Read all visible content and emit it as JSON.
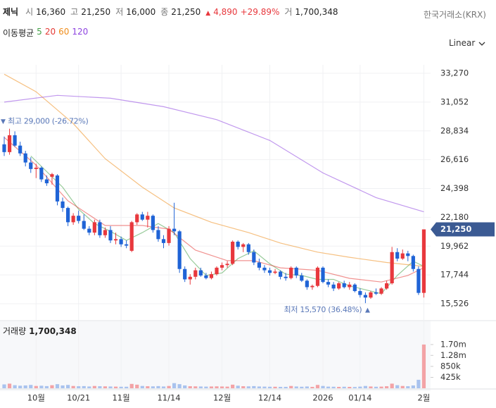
{
  "header": {
    "name": "제닉",
    "fields": [
      {
        "label": "시",
        "value": "16,360"
      },
      {
        "label": "고",
        "value": "21,250"
      },
      {
        "label": "저",
        "value": "16,000"
      },
      {
        "label": "종",
        "value": "21,250"
      }
    ],
    "change": "4,890",
    "change_pct": "+29.89%",
    "volume_label": "거",
    "volume": "1,700,348",
    "exchange": "한국거래소(KRX)",
    "scale": "Linear"
  },
  "chart_data": [
    {
      "type": "candlestick",
      "ma_title": "이동평균",
      "up_color": "#e8383d",
      "down_color": "#1f63d6",
      "grid": true,
      "open": [
        27800,
        27200,
        28500,
        27700,
        27100,
        26400,
        25900,
        26000,
        25100,
        25300,
        25400,
        23400,
        22900,
        21800,
        22300,
        21900,
        21300,
        21000,
        21800,
        20800,
        21200,
        20400,
        20500,
        20100,
        19600,
        21800,
        22400,
        22000,
        22300,
        21200,
        20500,
        20200,
        21300,
        21100,
        18200,
        17400,
        17600,
        18100,
        17700,
        17500,
        17800,
        18300,
        18500,
        18600,
        20300,
        19900,
        20100,
        19500,
        18700,
        18300,
        18100,
        17900,
        18000,
        17600,
        17500,
        18300,
        17700,
        17300,
        16800,
        16900,
        18300,
        17200,
        17000,
        16700,
        17100,
        16800,
        17000,
        16500,
        16200,
        16000,
        16400,
        16300,
        16700,
        17100,
        19500,
        19000,
        19400,
        19200,
        18200,
        16360
      ],
      "high": [
        28400,
        29000,
        28800,
        28000,
        27300,
        26800,
        26300,
        26100,
        25400,
        25600,
        25500,
        23700,
        23000,
        22500,
        22700,
        22400,
        21500,
        22000,
        22000,
        21400,
        21500,
        21000,
        20700,
        20400,
        21900,
        22500,
        22600,
        22600,
        22400,
        21500,
        20800,
        21500,
        23300,
        21200,
        18400,
        17800,
        18300,
        18300,
        17900,
        18000,
        18400,
        18700,
        18800,
        20400,
        20400,
        20200,
        20200,
        19700,
        19000,
        18500,
        18300,
        18200,
        18100,
        17900,
        18400,
        18400,
        17900,
        17400,
        17000,
        18400,
        18400,
        17400,
        17200,
        17200,
        17300,
        17200,
        17100,
        16700,
        16400,
        16500,
        16700,
        16800,
        17300,
        19900,
        19800,
        19700,
        19600,
        19300,
        18400,
        21250
      ],
      "low": [
        26900,
        27000,
        27600,
        26900,
        26100,
        25600,
        25200,
        24900,
        24600,
        24700,
        23100,
        22600,
        21500,
        21600,
        21700,
        21200,
        20800,
        20800,
        20600,
        20600,
        20200,
        20100,
        19900,
        19800,
        19500,
        21600,
        21900,
        21400,
        21000,
        20300,
        19800,
        20000,
        20800,
        17900,
        17200,
        17000,
        17400,
        17600,
        17400,
        17400,
        17700,
        18100,
        18300,
        18500,
        19700,
        19500,
        19300,
        18500,
        18100,
        17900,
        17700,
        17800,
        17400,
        17300,
        17400,
        17500,
        17200,
        16600,
        16600,
        16800,
        17100,
        16800,
        16500,
        16600,
        16700,
        16600,
        16400,
        16000,
        15570,
        15900,
        16200,
        16200,
        16600,
        17000,
        18800,
        18900,
        18800,
        18000,
        16200,
        16000
      ],
      "close": [
        27200,
        28500,
        27700,
        27100,
        26400,
        25900,
        26000,
        25100,
        24800,
        25500,
        23400,
        22900,
        21800,
        22300,
        21900,
        21300,
        21000,
        21800,
        20800,
        21200,
        20400,
        20500,
        20100,
        20000,
        21800,
        22400,
        22000,
        22300,
        21200,
        20500,
        20200,
        21300,
        21100,
        18200,
        17400,
        17600,
        18100,
        17700,
        17500,
        17800,
        18300,
        18500,
        18600,
        20300,
        19900,
        20100,
        19500,
        18700,
        18300,
        18100,
        17900,
        18000,
        17600,
        17500,
        18300,
        17700,
        17300,
        16800,
        16900,
        18300,
        17200,
        17000,
        16700,
        17100,
        16800,
        17000,
        16500,
        16200,
        16000,
        16400,
        16300,
        16700,
        17100,
        19500,
        19000,
        19400,
        19200,
        18200,
        16360,
        21250
      ],
      "series": [
        {
          "name": "5",
          "color": "#43a047",
          "x": [
            5,
            8,
            11,
            14,
            17,
            20,
            23,
            26,
            29,
            32,
            35,
            38,
            41,
            44,
            47,
            50,
            53,
            56,
            59,
            62,
            65,
            68,
            71,
            74,
            77,
            79
          ],
          "values": [
            26900,
            25700,
            24500,
            22800,
            21700,
            21100,
            20400,
            21000,
            21700,
            21000,
            19000,
            17700,
            17900,
            19000,
            19600,
            18600,
            17800,
            17700,
            17400,
            17400,
            16900,
            16600,
            16300,
            17700,
            18800,
            18400
          ]
        },
        {
          "name": "20",
          "color": "#e53935",
          "x": [
            0,
            6,
            12,
            19,
            26,
            31,
            36,
            42,
            47,
            52,
            59,
            65,
            71,
            76,
            79
          ],
          "values": [
            28330,
            26200,
            23450,
            21550,
            21550,
            21270,
            19650,
            18840,
            18840,
            18290,
            18100,
            17480,
            17200,
            17700,
            18300
          ]
        },
        {
          "name": "60",
          "color": "#ef8c1a",
          "x": [
            0,
            6,
            13,
            19,
            26,
            32,
            39,
            46,
            52,
            59,
            65,
            72,
            79
          ],
          "values": [
            33200,
            31850,
            29400,
            26700,
            24500,
            22900,
            21800,
            21000,
            20200,
            19500,
            19100,
            18700,
            18400
          ]
        },
        {
          "name": "120",
          "color": "#8e44e0",
          "x": [
            0,
            10,
            20,
            30,
            40,
            50,
            60,
            70,
            79
          ],
          "values": [
            31050,
            31570,
            31350,
            30700,
            29700,
            28100,
            25600,
            23700,
            22600
          ]
        }
      ],
      "last_price": {
        "value": 21250,
        "label": "21,250"
      },
      "annotations": [
        {
          "text": "최고 29,000 (-26.72%)",
          "value": 29000
        },
        {
          "text": "최저 15,570 (36.48%)",
          "value": 15570
        }
      ],
      "ylim": [
        14604,
        33921
      ],
      "yticks": [
        {
          "value": 15526,
          "label": "15,526"
        },
        {
          "value": 17744,
          "label": "17,744"
        },
        {
          "value": 19962,
          "label": "19,962"
        },
        {
          "value": 22180,
          "label": "22,180"
        },
        {
          "value": 24398,
          "label": "24,398"
        },
        {
          "value": 26616,
          "label": "26,616"
        },
        {
          "value": 28834,
          "label": "28,834"
        },
        {
          "value": 31052,
          "label": "31,052"
        },
        {
          "value": 33270,
          "label": "33,270"
        }
      ]
    },
    {
      "type": "bar",
      "title": "거래량",
      "current": "1,700,348",
      "up_color": "#f3a3a6",
      "down_color": "#a9c3ee",
      "categories": [
        null,
        null,
        null,
        null,
        null,
        null,
        "10월",
        null,
        null,
        null,
        null,
        null,
        null,
        null,
        "10/21",
        null,
        null,
        null,
        null,
        null,
        null,
        null,
        "11월",
        null,
        null,
        null,
        null,
        null,
        null,
        null,
        null,
        "11/14",
        null,
        null,
        null,
        null,
        null,
        null,
        null,
        null,
        null,
        "12월",
        null,
        null,
        null,
        null,
        null,
        null,
        null,
        null,
        "12/14",
        null,
        null,
        null,
        null,
        null,
        null,
        null,
        null,
        null,
        "2026",
        null,
        null,
        null,
        null,
        null,
        null,
        "01/14",
        null,
        null,
        null,
        null,
        null,
        null,
        null,
        null,
        null,
        null,
        null,
        "2월"
      ],
      "values": [
        150000,
        180000,
        120000,
        100000,
        110000,
        130000,
        90000,
        100000,
        85000,
        120000,
        160000,
        110000,
        130000,
        90000,
        80000,
        85000,
        70000,
        90000,
        80000,
        75000,
        70000,
        65000,
        60000,
        60000,
        170000,
        140000,
        90000,
        80000,
        75000,
        85000,
        70000,
        90000,
        200000,
        160000,
        110000,
        80000,
        75000,
        70000,
        65000,
        70000,
        75000,
        70000,
        65000,
        140000,
        100000,
        80000,
        75000,
        85000,
        70000,
        65000,
        60000,
        60000,
        55000,
        55000,
        90000,
        70000,
        60000,
        70000,
        55000,
        130000,
        90000,
        65000,
        60000,
        55000,
        60000,
        55000,
        50000,
        65000,
        90000,
        70000,
        60000,
        65000,
        80000,
        180000,
        120000,
        90000,
        80000,
        110000,
        330000,
        1700348
      ],
      "ylim": [
        0,
        2630000
      ],
      "yticks": [
        {
          "value": 425000,
          "label": "425k"
        },
        {
          "value": 850000,
          "label": "850k"
        },
        {
          "value": 1280000,
          "label": "1.28m"
        },
        {
          "value": 1700000,
          "label": "1.70m"
        }
      ]
    }
  ]
}
